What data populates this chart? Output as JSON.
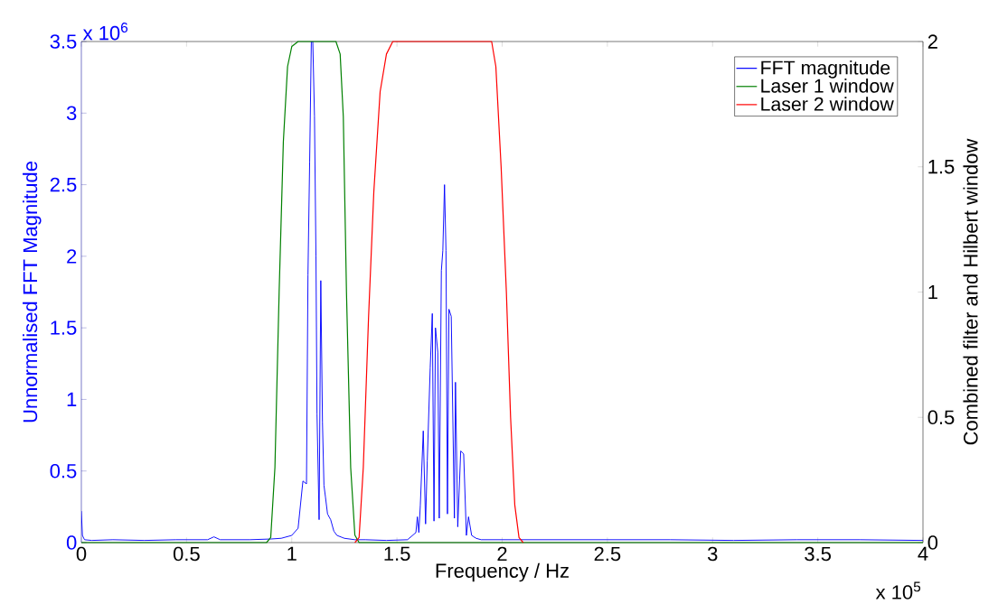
{
  "chart_data": {
    "type": "line",
    "xlabel": "Frequency / Hz",
    "ylabel": "Unnormalised FFT Magnitude",
    "y2label": "Combined filter and Hilbert window",
    "xlim": [
      0,
      4
    ],
    "ylim": [
      0,
      3.5
    ],
    "y2lim": [
      0,
      2
    ],
    "xticks": [
      0,
      0.5,
      1,
      1.5,
      2,
      2.5,
      3,
      3.5,
      4
    ],
    "yticks": [
      0,
      0.5,
      1,
      1.5,
      2,
      2.5,
      3,
      3.5
    ],
    "y2ticks": [
      0,
      0.5,
      1,
      1.5,
      2
    ],
    "annotations": [
      "x 10$^{6}$",
      "x 10$^{5}$"
    ],
    "legend": "top right",
    "series": [
      {
        "name": "FFT magnitude",
        "color": "#0000ff",
        "x": [
          0,
          0.005,
          0.015,
          0.05,
          0.15,
          0.3,
          0.45,
          0.6,
          0.63,
          0.66,
          0.8,
          0.9,
          0.95,
          1.0,
          1.03,
          1.053,
          1.07,
          1.077,
          1.085,
          1.093,
          1.1,
          1.108,
          1.115,
          1.12,
          1.13,
          1.138,
          1.146,
          1.153,
          1.16,
          1.17,
          1.185,
          1.2,
          1.215,
          1.25,
          1.3,
          1.35,
          1.45,
          1.55,
          1.59,
          1.597,
          1.604,
          1.611,
          1.625,
          1.636,
          1.644,
          1.658,
          1.668,
          1.676,
          1.683,
          1.694,
          1.701,
          1.711,
          1.718,
          1.726,
          1.733,
          1.74,
          1.747,
          1.758,
          1.773,
          1.778,
          1.789,
          1.803,
          1.817,
          1.83,
          1.84,
          1.855,
          1.876,
          1.9,
          2.0,
          2.2,
          2.5,
          2.8,
          3.1,
          3.4,
          3.7,
          4.0
        ],
        "values": [
          0.22,
          0.05,
          0.02,
          0.015,
          0.02,
          0.015,
          0.02,
          0.02,
          0.04,
          0.02,
          0.02,
          0.025,
          0.03,
          0.05,
          0.1,
          0.43,
          0.41,
          1.87,
          2.66,
          3.5,
          3.5,
          2.98,
          2.0,
          0.9,
          0.16,
          1.83,
          0.84,
          0.4,
          0.32,
          0.2,
          0.16,
          0.08,
          0.05,
          0.03,
          0.02,
          0.02,
          0.015,
          0.02,
          0.07,
          0.18,
          0.07,
          0.26,
          0.78,
          0.13,
          0.57,
          1.22,
          1.6,
          0.15,
          1.5,
          1.33,
          0.17,
          1.9,
          2.04,
          2.5,
          2.04,
          0.2,
          1.63,
          1.58,
          0.17,
          1.12,
          0.11,
          0.64,
          0.62,
          0.05,
          0.18,
          0.05,
          0.03,
          0.02,
          0.02,
          0.02,
          0.02,
          0.02,
          0.015,
          0.02,
          0.02,
          0.015
        ]
      },
      {
        "name": "Laser 1 window",
        "color": "#008000",
        "axis": "y2",
        "x": [
          0,
          0.88,
          0.9,
          0.92,
          0.94,
          0.96,
          0.98,
          1.0,
          1.03,
          1.21,
          1.23,
          1.245,
          1.26,
          1.28,
          1.3,
          1.32,
          4.0
        ],
        "values": [
          0,
          0,
          0.02,
          0.3,
          1.0,
          1.6,
          1.9,
          1.98,
          2,
          2,
          1.95,
          1.7,
          1.0,
          0.3,
          0.03,
          0,
          0
        ]
      },
      {
        "name": "Laser 2 window",
        "color": "#ff0000",
        "axis": "y2",
        "x": [
          1.3,
          1.32,
          1.34,
          1.365,
          1.39,
          1.42,
          1.45,
          1.48,
          1.95,
          1.97,
          1.995,
          2.02,
          2.04,
          2.06,
          2.08,
          2.1
        ],
        "values": [
          0,
          0.02,
          0.3,
          0.9,
          1.4,
          1.8,
          1.95,
          2,
          2,
          1.9,
          1.5,
          1.0,
          0.5,
          0.15,
          0.02,
          0
        ]
      }
    ]
  }
}
